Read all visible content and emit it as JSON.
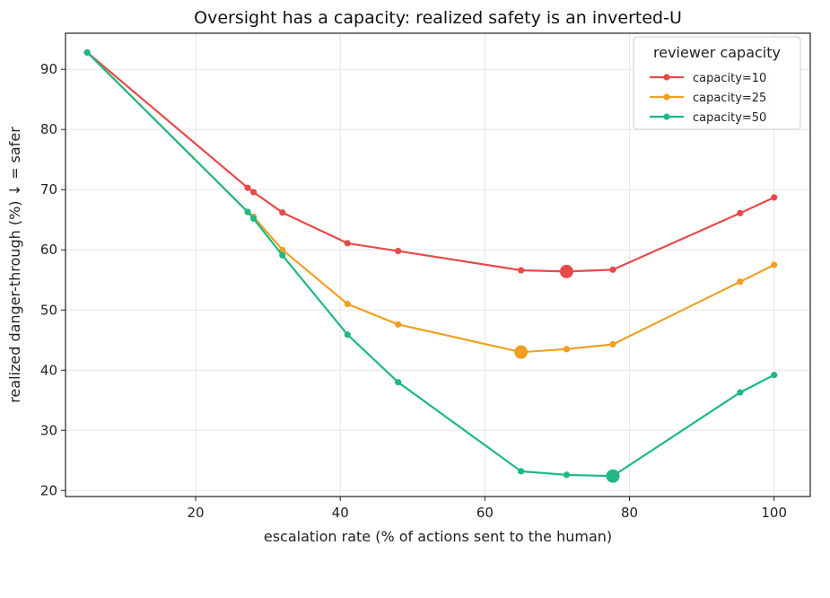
{
  "chart_data": {
    "type": "line",
    "title": "Oversight has a capacity: realized safety is an inverted-U",
    "xlabel": "escalation rate (% of actions sent to the human)",
    "ylabel": "realized danger-through (%)  ↓ = safer",
    "xlim": [
      2,
      105
    ],
    "ylim": [
      19,
      96
    ],
    "xticks": [
      20,
      40,
      60,
      80,
      100
    ],
    "yticks": [
      20,
      30,
      40,
      50,
      60,
      70,
      80,
      90
    ],
    "grid": true,
    "legend": {
      "title": "reviewer capacity",
      "position": "top-right"
    },
    "x": [
      5,
      27.2,
      28,
      32,
      41,
      48,
      65,
      71.3,
      77.7,
      95.3,
      100
    ],
    "series": [
      {
        "name": "capacity=10",
        "color": "#e84a4a",
        "values": [
          92.8,
          70.3,
          69.6,
          66.2,
          61.1,
          59.8,
          56.6,
          56.4,
          56.7,
          66.1,
          68.7
        ],
        "highlight_x": 71.3,
        "highlight_y": 56.4
      },
      {
        "name": "capacity=25",
        "color": "#f0a020",
        "values": [
          92.8,
          66.3,
          65.5,
          60.0,
          51.0,
          47.6,
          43.0,
          43.5,
          44.3,
          54.7,
          57.5
        ],
        "highlight_x": 65,
        "highlight_y": 43.0
      },
      {
        "name": "capacity=50",
        "color": "#1fb886",
        "values": [
          92.8,
          66.3,
          65.2,
          59.1,
          45.9,
          38.0,
          23.2,
          22.6,
          22.4,
          36.3,
          39.2
        ],
        "highlight_x": 77.7,
        "highlight_y": 22.4
      }
    ]
  }
}
